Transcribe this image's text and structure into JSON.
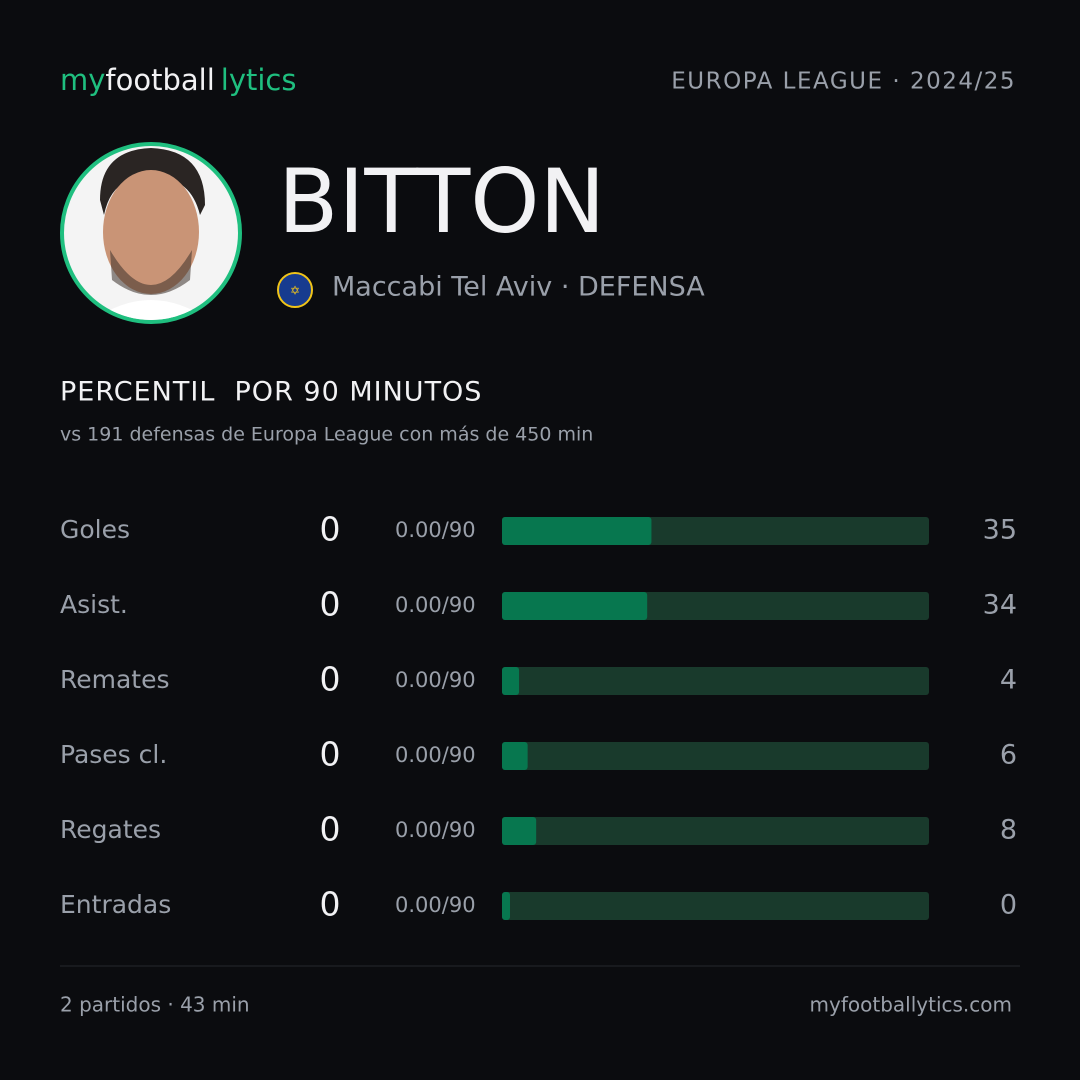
{
  "brand": {
    "my": "my",
    "football": "football",
    "lytics": "lytics"
  },
  "competition": "EUROPA LEAGUE · 2024/25",
  "player": {
    "name": "BITTON",
    "team": "Maccabi Tel Aviv · DEFENSA"
  },
  "section": {
    "title": "PERCENTIL  POR 90 MINUTOS",
    "subtitle": "vs 191 defensas de Europa League con más de 450 min"
  },
  "stats": {
    "xlim": [
      0,
      100
    ],
    "rows": [
      {
        "label": "Goles",
        "total": 0,
        "per90": "0.00/90",
        "percentile": 35
      },
      {
        "label": "Asist.",
        "total": 0,
        "per90": "0.00/90",
        "percentile": 34
      },
      {
        "label": "Remates",
        "total": 0,
        "per90": "0.00/90",
        "percentile": 4
      },
      {
        "label": "Pases cl.",
        "total": 0,
        "per90": "0.00/90",
        "percentile": 6
      },
      {
        "label": "Regates",
        "total": 0,
        "per90": "0.00/90",
        "percentile": 8
      },
      {
        "label": "Entradas",
        "total": 0,
        "per90": "0.00/90",
        "percentile": 0
      }
    ]
  },
  "footer": {
    "left": "2 partidos · 43 min",
    "right": "myfootballytics.com"
  }
}
